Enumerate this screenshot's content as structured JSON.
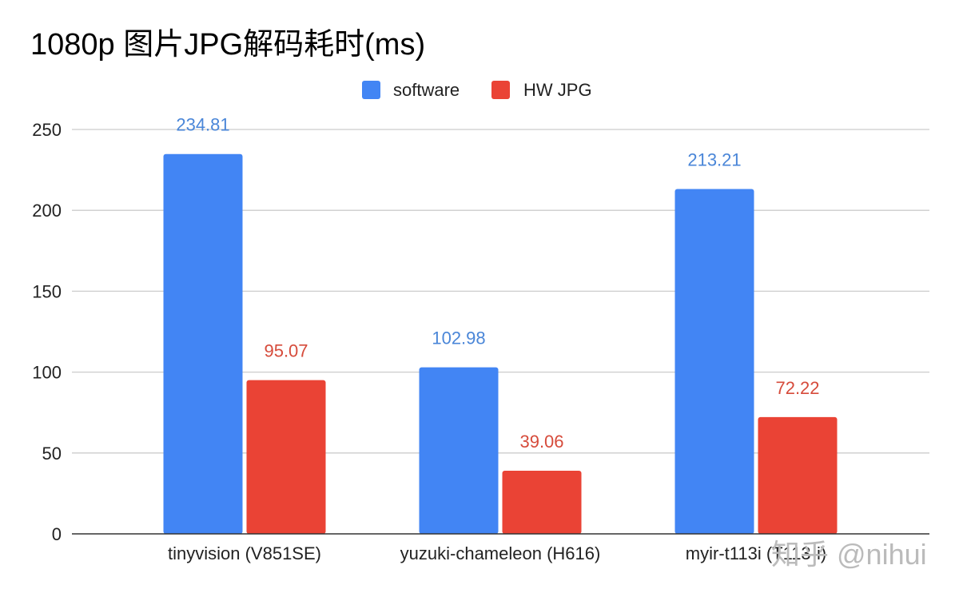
{
  "chart_data": {
    "type": "bar",
    "title": "1080p 图片JPG解码耗时(ms)",
    "xlabel": "",
    "ylabel": "",
    "categories": [
      "tinyvision (V851SE)",
      "yuzuki-chameleon (H616)",
      "myir-t113i (T113-i)"
    ],
    "series": [
      {
        "name": "software",
        "values": [
          234.81,
          102.98,
          213.21
        ],
        "color": "#4285f4",
        "label_color": "#4a86d8"
      },
      {
        "name": "HW JPG",
        "values": [
          95.07,
          39.06,
          72.22
        ],
        "color": "#ea4335",
        "label_color": "#d64b3b"
      }
    ],
    "ylim": [
      0,
      250
    ],
    "yticks": [
      0,
      50,
      100,
      150,
      200,
      250
    ],
    "grid": true,
    "legend": "top-center"
  },
  "watermark": "知乎 @nihui"
}
